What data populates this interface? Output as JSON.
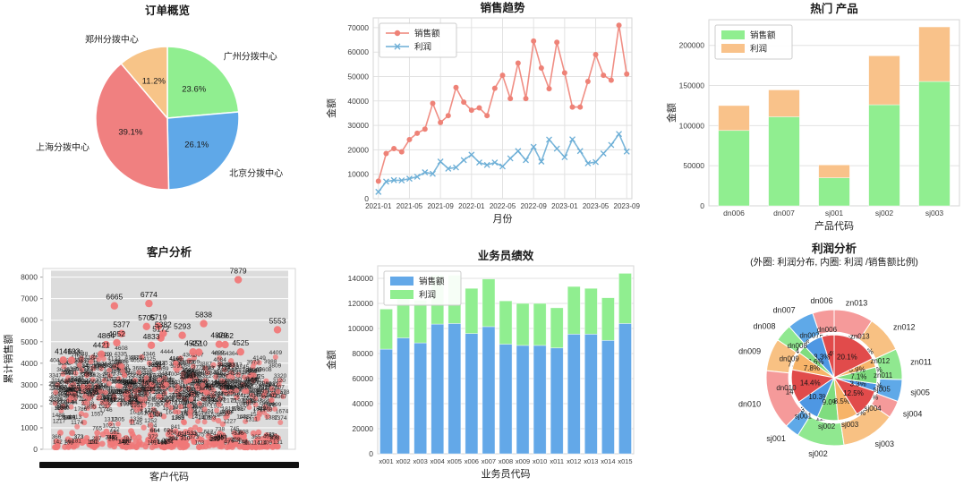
{
  "page": {
    "background": "#ffffff"
  },
  "chart_data": [
    {
      "id": "orders_pie",
      "type": "pie",
      "title": "订单概览",
      "labels": [
        "广州分拨中心",
        "北京分拨中心",
        "上海分拨中心",
        "郑州分拨中心"
      ],
      "values": [
        23.6,
        26.1,
        39.1,
        11.2
      ],
      "pct_labels": [
        "23.6%",
        "26.1%",
        "39.1%",
        "11.2%"
      ],
      "colors": [
        "#90ee90",
        "#5fa8e8",
        "#f08080",
        "#f7c488"
      ],
      "start_angle": 90,
      "direction": "clockwise"
    },
    {
      "id": "sales_trend",
      "type": "line",
      "title": "销售趋势",
      "xlabel": "月份",
      "ylabel": "金额",
      "x": [
        "2021-01",
        "2021-02",
        "2021-03",
        "2021-04",
        "2021-05",
        "2021-06",
        "2021-07",
        "2021-08",
        "2021-09",
        "2021-10",
        "2021-11",
        "2021-12",
        "2022-01",
        "2022-02",
        "2022-03",
        "2022-04",
        "2022-05",
        "2022-06",
        "2022-07",
        "2022-08",
        "2022-09",
        "2022-10",
        "2022-11",
        "2022-12",
        "2023-01",
        "2023-02",
        "2023-03",
        "2023-04",
        "2023-05",
        "2023-06",
        "2023-07",
        "2023-08",
        "2023-09"
      ],
      "x_ticks": [
        "2021-01",
        "2021-05",
        "2021-09",
        "2022-01",
        "2022-05",
        "2022-09",
        "2023-01",
        "2023-05",
        "2023-09"
      ],
      "y_ticks": [
        0,
        10000,
        20000,
        30000,
        40000,
        50000,
        60000,
        70000
      ],
      "ylim": [
        0,
        74000
      ],
      "legend_position": "top-left",
      "grid": true,
      "series": [
        {
          "name": "销售额",
          "color": "#ee8277",
          "marker": "circle",
          "values": [
            7200,
            18500,
            20500,
            19200,
            24200,
            26800,
            28500,
            39000,
            31200,
            34000,
            45500,
            39500,
            36200,
            37200,
            34000,
            45200,
            50500,
            41000,
            55500,
            41000,
            64500,
            53500,
            45000,
            64000,
            51500,
            37500,
            37500,
            48000,
            59000,
            50500,
            48500,
            71000,
            51000
          ]
        },
        {
          "name": "利润",
          "color": "#6baed6",
          "marker": "x",
          "values": [
            2800,
            7000,
            7600,
            7500,
            8200,
            9000,
            10800,
            10200,
            15200,
            12300,
            12800,
            15800,
            18000,
            14800,
            13800,
            14800,
            13200,
            16500,
            19500,
            15800,
            21200,
            15200,
            24200,
            20500,
            17000,
            24300,
            19500,
            14500,
            15000,
            18500,
            22000,
            26500,
            19300
          ]
        }
      ]
    },
    {
      "id": "hot_products",
      "type": "stacked_bar",
      "title": "热门 产品",
      "xlabel": "产品代码",
      "ylabel": "金额",
      "categories": [
        "dn006",
        "dn007",
        "sj001",
        "sj002",
        "sj003"
      ],
      "y_ticks": [
        0,
        50000,
        100000,
        150000,
        200000
      ],
      "ylim": [
        0,
        232000
      ],
      "grid": true,
      "legend_position": "top-left",
      "series": [
        {
          "name": "销售额",
          "color": "#90ee90",
          "values": [
            94000,
            111000,
            35000,
            126000,
            155000
          ]
        },
        {
          "name": "利润",
          "color": "#f9c28a",
          "values": [
            31000,
            33500,
            16000,
            61000,
            68000
          ]
        }
      ]
    },
    {
      "id": "customer_scatter",
      "type": "scatter",
      "title": "客户分析",
      "xlabel": "客户代码",
      "ylabel": "累计销售额",
      "y_ticks": [
        0,
        1000,
        2000,
        3000,
        4000,
        5000,
        6000,
        7000,
        8000
      ],
      "ylim": [
        0,
        8400
      ],
      "point_color": "#f07878",
      "plot_bg": "#dcdcdc",
      "x_axis_band": true,
      "labeled_points": [
        {
          "x": 0.79,
          "y": 7879,
          "label": "7879"
        },
        {
          "x": 0.415,
          "y": 6774,
          "label": "6774"
        },
        {
          "x": 0.27,
          "y": 6665,
          "label": "6665"
        },
        {
          "x": 0.645,
          "y": 5838,
          "label": "5838"
        },
        {
          "x": 0.455,
          "y": 5719,
          "label": "5719"
        },
        {
          "x": 0.405,
          "y": 5705,
          "label": "5705"
        },
        {
          "x": 0.955,
          "y": 5553,
          "label": "5553"
        },
        {
          "x": 0.475,
          "y": 5382,
          "label": "5382"
        },
        {
          "x": 0.3,
          "y": 5377,
          "label": "5377"
        },
        {
          "x": 0.555,
          "y": 5293,
          "label": "5293"
        },
        {
          "x": 0.465,
          "y": 5172,
          "label": "5172"
        },
        {
          "x": 0.28,
          "y": 4952,
          "label": "4952"
        },
        {
          "x": 0.71,
          "y": 4879,
          "label": "4879"
        },
        {
          "x": 0.235,
          "y": 4864,
          "label": "4864"
        },
        {
          "x": 0.735,
          "y": 4862,
          "label": "4862"
        },
        {
          "x": 0.425,
          "y": 4833,
          "label": "4833"
        },
        {
          "x": 0.8,
          "y": 4525,
          "label": "4525"
        },
        {
          "x": 0.6,
          "y": 4522,
          "label": "4522"
        },
        {
          "x": 0.625,
          "y": 4510,
          "label": "4510"
        },
        {
          "x": 0.215,
          "y": 4421,
          "label": "4421"
        },
        {
          "x": 0.055,
          "y": 4146,
          "label": "4146"
        },
        {
          "x": 0.09,
          "y": 4133,
          "label": "4133"
        }
      ],
      "cloud": {
        "seed": 7,
        "count_bottom": 240,
        "bottom_range": [
          90,
          950
        ],
        "bottom_label_count": 80,
        "count_mid": 520,
        "mid_range": [
          1000,
          4650
        ],
        "extra_red": 60
      }
    },
    {
      "id": "salesman_perf",
      "type": "stacked_bar",
      "title": "业务员绩效",
      "xlabel": "业务员代码",
      "ylabel": "金额",
      "categories": [
        "x001",
        "x002",
        "x003",
        "x004",
        "x005",
        "x006",
        "x007",
        "x008",
        "x009",
        "x010",
        "x011",
        "x012",
        "x013",
        "x014",
        "x015"
      ],
      "y_ticks": [
        0,
        20000,
        40000,
        60000,
        80000,
        100000,
        120000,
        140000
      ],
      "ylim": [
        0,
        150000
      ],
      "grid": true,
      "legend_position": "top-left",
      "series": [
        {
          "name": "销售额",
          "color": "#63a8e8",
          "values": [
            83500,
            92500,
            88500,
            103500,
            104000,
            96000,
            101500,
            87500,
            86500,
            86500,
            84500,
            95500,
            95500,
            90500,
            104000
          ]
        },
        {
          "name": "利润",
          "color": "#90ee90",
          "values": [
            32000,
            32500,
            34000,
            39000,
            38500,
            36000,
            38000,
            34500,
            33500,
            33500,
            32000,
            38000,
            36500,
            34000,
            40000
          ]
        }
      ]
    },
    {
      "id": "profit_nested_pie",
      "type": "nested_pie",
      "title": "利润分析",
      "subtitle": "(外圈: 利润分布, 内圈: 利润 /销售额比例)",
      "labels": [
        "dn006",
        "dn007",
        "dn008",
        "dn009",
        "dn010",
        "sj001",
        "sj002",
        "sj003",
        "sj004",
        "sj005",
        "zn011",
        "zn012",
        "zn013"
      ],
      "outer_ring": {
        "name": "利润分布",
        "values": [
          5.2,
          6.4,
          4.2,
          7.8,
          14.4,
          3.5,
          11.4,
          13.0,
          4.2,
          5.3,
          7.4,
          8.9,
          9.4
        ],
        "pct_labels": [
          "5.2%",
          "6.4%",
          "4.2%",
          "7.8%",
          "14.4%",
          "3.5%",
          "11.4%",
          "13.0%",
          "4.2%",
          "5.3%",
          "7.4%",
          "8.9%",
          "9.4%"
        ],
        "colors": [
          "#f59a9a",
          "#5fa9e8",
          "#90e890",
          "#f8c183"
        ]
      },
      "inner_ring": {
        "name": "利润 /销售额比例",
        "values": [
          5.4,
          8.3,
          3.6,
          7.8,
          14.4,
          10.3,
          9.0,
          8.5,
          12.5,
          3.3,
          7.1,
          3.9,
          20.1
        ],
        "pct_labels": [
          "5.4%",
          "8.3%",
          "3.6%",
          "7.8%",
          "14.4%",
          "10.3%",
          "9.0%",
          "8.5%",
          "12.5%",
          "3.3%",
          "7.1%",
          "3.9%",
          "20.1%"
        ],
        "colors": [
          "#e14b4b",
          "#4e97e3",
          "#7fdd7f",
          "#f7b469"
        ]
      },
      "start_angle": 90,
      "direction": "counterclockwise"
    }
  ]
}
